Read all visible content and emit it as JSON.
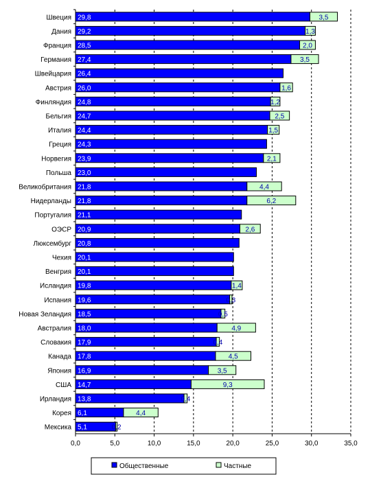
{
  "chart_data": {
    "type": "bar",
    "orientation": "horizontal",
    "stacked": true,
    "categories": [
      "Швеция",
      "Дания",
      "Франция",
      "Германия",
      "Швейцария",
      "Австрия",
      "Финляндия",
      "Бельгия",
      "Италия",
      "Греция",
      "Норвегия",
      "Польша",
      "Великобритания",
      "Нидерланды",
      "Португалия",
      "ОЭСР",
      "Люксембург",
      "Чехия",
      "Венгрия",
      "Исландия",
      "Испания",
      "Новая Зеландия",
      "Австралия",
      "Словакия",
      "Канада",
      "Япония",
      "США",
      "Ирландия",
      "Корея",
      "Мексика"
    ],
    "series": [
      {
        "name": "Общественные",
        "color": "#0000ff",
        "values": [
          29.8,
          29.2,
          28.5,
          27.4,
          26.4,
          26.0,
          24.8,
          24.7,
          24.4,
          24.3,
          23.9,
          23.0,
          21.8,
          21.8,
          21.1,
          20.9,
          20.8,
          20.1,
          20.1,
          19.8,
          19.6,
          18.5,
          18.0,
          17.9,
          17.8,
          16.9,
          14.7,
          13.8,
          6.1,
          5.1
        ],
        "labels": [
          "29,8",
          "29,2",
          "28,5",
          "27,4",
          "26,4",
          "26,0",
          "24,8",
          "24,7",
          "24,4",
          "24,3",
          "23,9",
          "23,0",
          "21,8",
          "21,8",
          "21,1",
          "20,9",
          "20,8",
          "20,1",
          "20,1",
          "19,8",
          "19,6",
          "18,5",
          "18,0",
          "17,9",
          "17,8",
          "16,9",
          "14,7",
          "13,8",
          "6,1",
          "5,1"
        ]
      },
      {
        "name": "Частные",
        "color": "#ccffcc",
        "values": [
          3.5,
          1.3,
          2.0,
          3.5,
          null,
          1.6,
          1.2,
          2.5,
          1.5,
          null,
          2.1,
          null,
          4.4,
          6.2,
          null,
          2.6,
          null,
          null,
          null,
          1.4,
          0.3,
          0.5,
          4.9,
          0.4,
          4.5,
          3.5,
          9.3,
          0.4,
          4.4,
          0.2
        ],
        "labels": [
          "3,5",
          "1,3",
          "2,0",
          "3,5",
          "",
          "1,6",
          "1,2",
          "2,5",
          "1,5",
          "",
          "2,1",
          "",
          "4,4",
          "6,2",
          "",
          "2,6",
          "",
          "",
          "",
          "1,4",
          "0,3",
          "0,5",
          "4,9",
          "0,4",
          "4,5",
          "3,5",
          "9,3",
          "0,4",
          "4,4",
          "0,2"
        ]
      }
    ],
    "xlim": [
      0,
      35
    ],
    "x_ticks": [
      0,
      5,
      10,
      15,
      20,
      25,
      30,
      35
    ],
    "x_tick_labels": [
      "0,0",
      "5,0",
      "10,0",
      "15,0",
      "20,0",
      "25,0",
      "30,0",
      "35,0"
    ],
    "grid": "vertical dashed",
    "legend": {
      "placement": "bottom",
      "entries": [
        "Общественные",
        "Частные"
      ]
    }
  }
}
